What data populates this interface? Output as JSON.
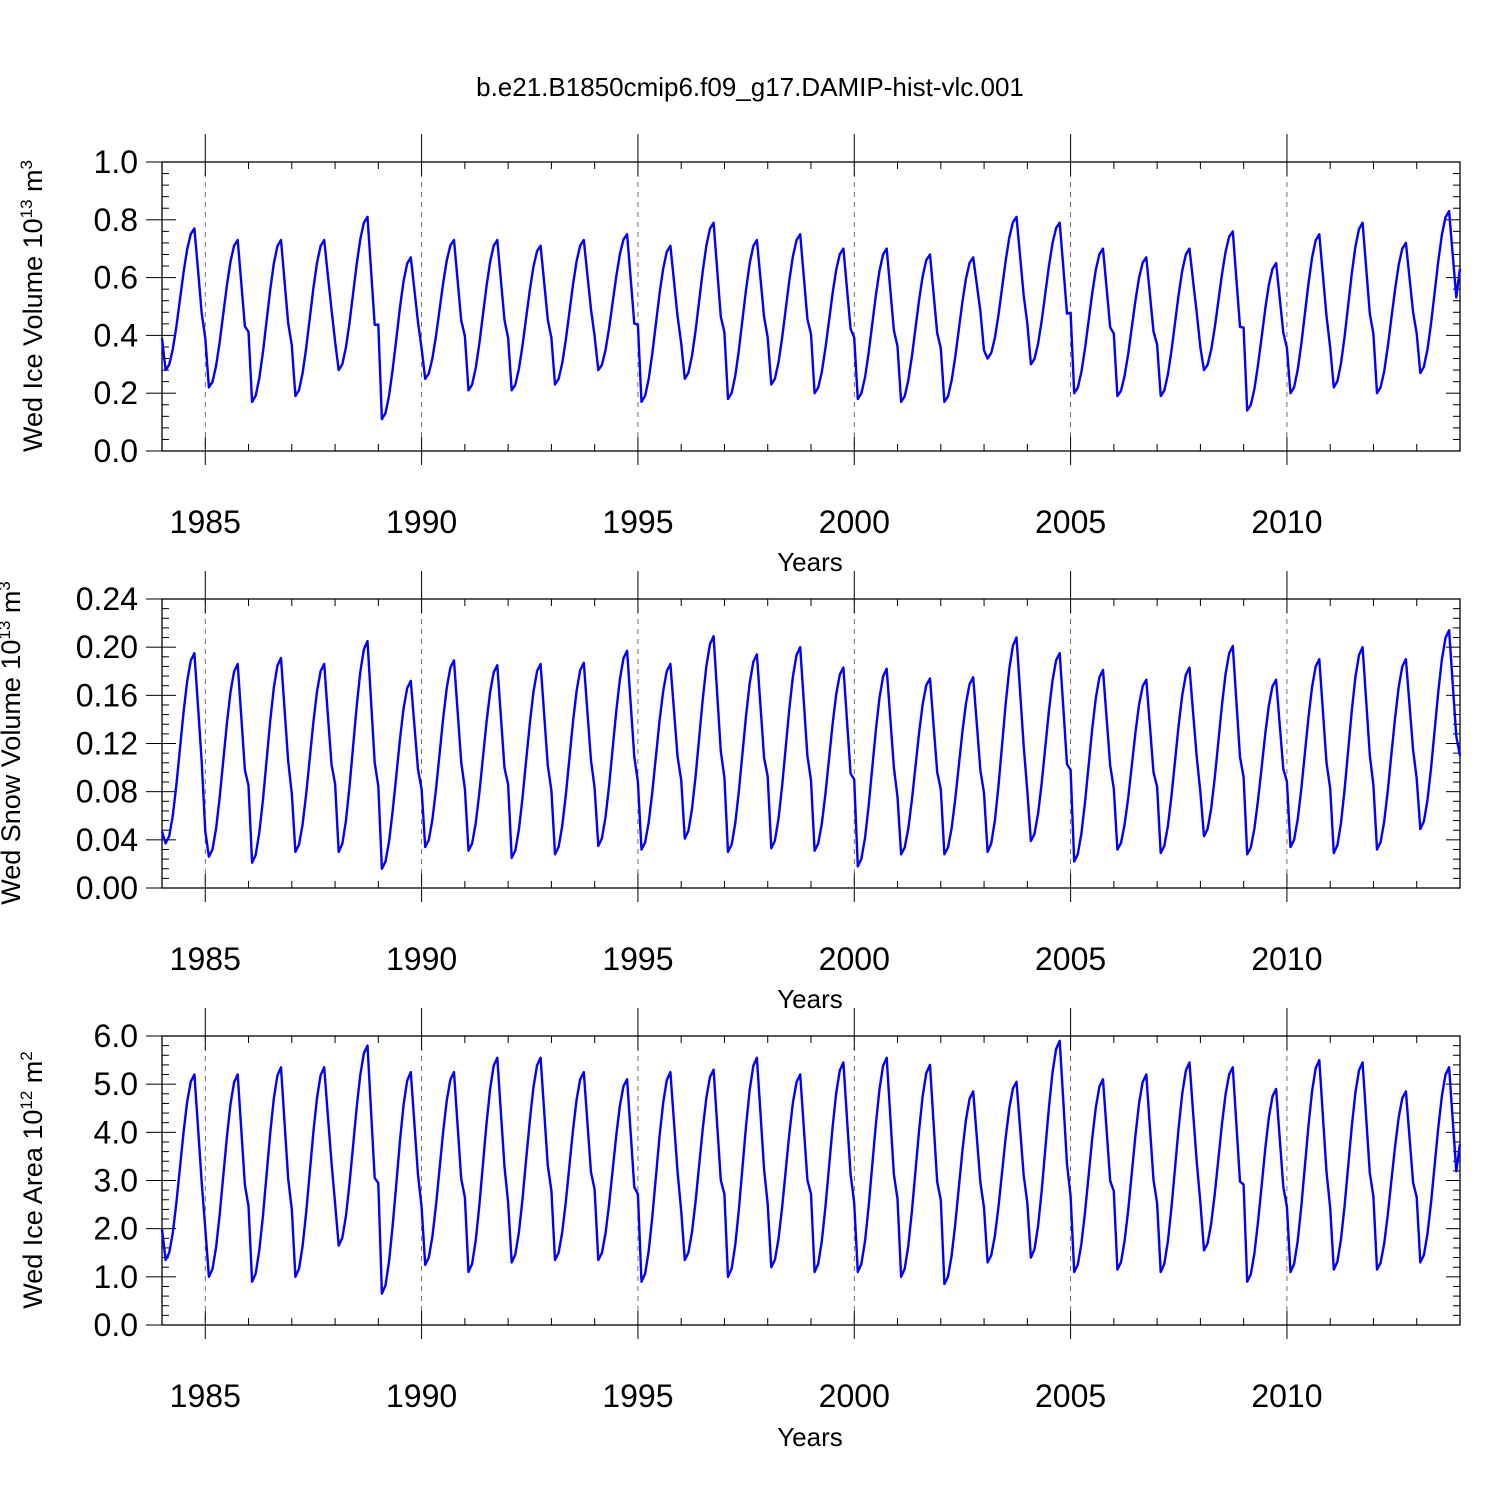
{
  "title": "b.e21.B1850cmip6.f09_g17.DAMIP-hist-vlc.001",
  "line_color": "#0000ff",
  "chart_data": [
    {
      "type": "line",
      "ylabel_main": "Wed Ice Volume 10",
      "ylabel_exp": "13",
      "ylabel_unit": " m",
      "ylabel_unit_exp": "3",
      "xlabel": "Years",
      "xlim": [
        1984.0,
        2014.0
      ],
      "ylim": [
        0.0,
        1.0
      ],
      "xticks": [
        1985,
        1990,
        1995,
        2000,
        2005,
        2010
      ],
      "yticks": [
        0.0,
        0.2,
        0.4,
        0.6,
        0.8,
        1.0
      ],
      "ytick_labels": [
        "0.0",
        "0.2",
        "0.4",
        "0.6",
        "0.8",
        "1.0"
      ],
      "minor_y": 0.04,
      "series": [
        {
          "name": "Wed Ice Volume",
          "start_year": 1984.0,
          "step": 0.08333,
          "annual_min": [
            0.28,
            0.22,
            0.17,
            0.19,
            0.28,
            0.11,
            0.25,
            0.21,
            0.21,
            0.23,
            0.28,
            0.17,
            0.25,
            0.18,
            0.23,
            0.2,
            0.18,
            0.17,
            0.17,
            0.32,
            0.3,
            0.2,
            0.19,
            0.19,
            0.28,
            0.14,
            0.2,
            0.22,
            0.2,
            0.27
          ],
          "annual_max": [
            0.77,
            0.73,
            0.73,
            0.73,
            0.81,
            0.67,
            0.73,
            0.73,
            0.71,
            0.73,
            0.75,
            0.71,
            0.79,
            0.73,
            0.75,
            0.7,
            0.7,
            0.68,
            0.67,
            0.81,
            0.79,
            0.7,
            0.67,
            0.7,
            0.76,
            0.65,
            0.75,
            0.79,
            0.72,
            0.83
          ],
          "first_value": 0.39,
          "last_value": 0.63
        }
      ]
    },
    {
      "type": "line",
      "ylabel_main": "Wed Snow Volume 10",
      "ylabel_exp": "13",
      "ylabel_unit": " m",
      "ylabel_unit_exp": "3",
      "xlabel": "Years",
      "xlim": [
        1984.0,
        2014.0
      ],
      "ylim": [
        0.0,
        0.24
      ],
      "xticks": [
        1985,
        1990,
        1995,
        2000,
        2005,
        2010
      ],
      "yticks": [
        0.0,
        0.04,
        0.08,
        0.12,
        0.16,
        0.2,
        0.24
      ],
      "ytick_labels": [
        "0.00",
        "0.04",
        "0.08",
        "0.12",
        "0.16",
        "0.20",
        "0.24"
      ],
      "minor_y": 0.008,
      "series": [
        {
          "name": "Wed Snow Volume",
          "start_year": 1984.0,
          "step": 0.08333,
          "annual_min": [
            0.037,
            0.026,
            0.021,
            0.03,
            0.03,
            0.016,
            0.034,
            0.031,
            0.025,
            0.028,
            0.035,
            0.032,
            0.041,
            0.03,
            0.033,
            0.031,
            0.018,
            0.028,
            0.028,
            0.03,
            0.039,
            0.022,
            0.032,
            0.029,
            0.043,
            0.028,
            0.034,
            0.029,
            0.032,
            0.049
          ],
          "annual_max": [
            0.195,
            0.186,
            0.191,
            0.186,
            0.205,
            0.172,
            0.189,
            0.185,
            0.186,
            0.187,
            0.197,
            0.186,
            0.209,
            0.194,
            0.2,
            0.183,
            0.182,
            0.174,
            0.175,
            0.208,
            0.195,
            0.181,
            0.173,
            0.183,
            0.201,
            0.173,
            0.19,
            0.2,
            0.19,
            0.214
          ],
          "first_value": 0.047,
          "last_value": 0.11
        }
      ]
    },
    {
      "type": "line",
      "ylabel_main": "Wed Ice Area 10",
      "ylabel_exp": "12",
      "ylabel_unit": " m",
      "ylabel_unit_exp": "2",
      "xlabel": "Years",
      "xlim": [
        1984.0,
        2014.0
      ],
      "ylim": [
        0.0,
        6.0
      ],
      "xticks": [
        1985,
        1990,
        1995,
        2000,
        2005,
        2010
      ],
      "yticks": [
        0.0,
        1.0,
        2.0,
        3.0,
        4.0,
        5.0,
        6.0
      ],
      "ytick_labels": [
        "0.0",
        "1.0",
        "2.0",
        "3.0",
        "4.0",
        "5.0",
        "6.0"
      ],
      "minor_y": 0.2,
      "series": [
        {
          "name": "Wed Ice Area",
          "start_year": 1984.0,
          "step": 0.08333,
          "annual_min": [
            1.35,
            1.0,
            0.9,
            1.0,
            1.65,
            0.65,
            1.25,
            1.1,
            1.3,
            1.35,
            1.35,
            0.9,
            1.35,
            1.0,
            1.2,
            1.1,
            1.1,
            1.0,
            0.85,
            1.3,
            1.4,
            1.1,
            1.15,
            1.1,
            1.55,
            0.9,
            1.1,
            1.15,
            1.15,
            1.3
          ],
          "annual_max": [
            5.2,
            5.2,
            5.35,
            5.35,
            5.8,
            5.25,
            5.25,
            5.55,
            5.55,
            5.25,
            5.1,
            5.25,
            5.3,
            5.55,
            5.2,
            5.45,
            5.55,
            5.4,
            4.85,
            5.05,
            5.9,
            5.1,
            5.2,
            5.45,
            5.35,
            4.9,
            5.5,
            5.45,
            4.85,
            5.35
          ],
          "first_value": 2.0,
          "last_value": 3.75
        }
      ]
    }
  ]
}
